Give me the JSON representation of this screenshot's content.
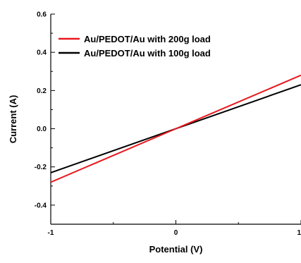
{
  "chart_data": {
    "type": "line",
    "title": "",
    "xlabel": "Potential (V)",
    "ylabel": "Current (A)",
    "xlim": [
      -1,
      1
    ],
    "ylim": [
      -0.5,
      0.6
    ],
    "x_ticks": [
      -1,
      0,
      1
    ],
    "x_tick_labels": [
      "-1",
      "0",
      "1"
    ],
    "y_ticks": [
      -0.4,
      -0.2,
      0.0,
      0.2,
      0.4,
      0.6
    ],
    "y_tick_labels": [
      "-0.4",
      "-0.2",
      "0.0",
      "0.2",
      "0.4",
      "0.6"
    ],
    "grid": false,
    "legend_position": "top-left",
    "series": [
      {
        "name": "Au/PEDOT/Au with 200g load",
        "color": "#e8191f",
        "x": [
          -1,
          1
        ],
        "y": [
          -0.28,
          0.28
        ]
      },
      {
        "name": "Au/PEDOT/Au with 100g load",
        "color": "#000000",
        "x": [
          -1,
          1
        ],
        "y": [
          -0.23,
          0.23
        ]
      }
    ]
  }
}
